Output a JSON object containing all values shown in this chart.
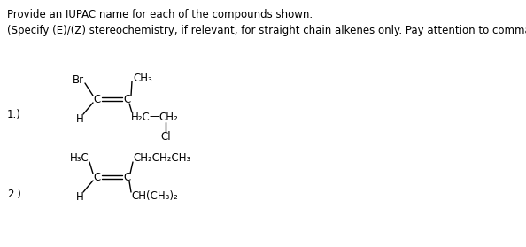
{
  "title_line1": "Provide an IUPAC name for each of the compounds shown.",
  "title_line2": "(Specify (E)/(Z) stereochemistry, if relevant, for straight chain alkenes only. Pay attention to commas, dashes, etc.)",
  "bg_color": "#ffffff",
  "text_color": "#000000",
  "font_size_body": 8.5,
  "font_size_struct": 8.5,
  "compound1_label": "1.)",
  "compound2_label": "2.)"
}
